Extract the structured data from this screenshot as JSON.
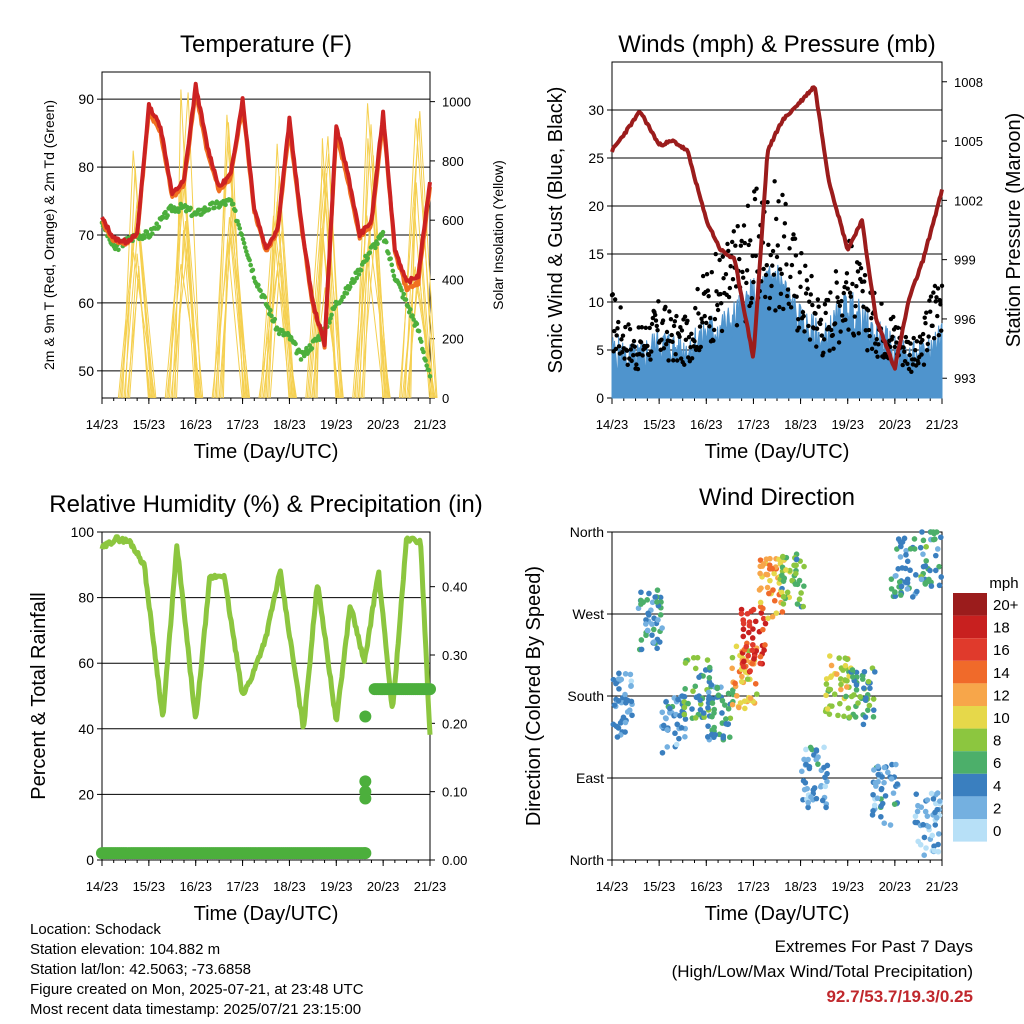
{
  "chart_data": [
    {
      "type": "line",
      "title": "Temperature (F)",
      "xlabel": "Time (Day/UTC)",
      "ylabel": "2m & 9m T (Red, Orange) & 2m Td (Green)",
      "ylabel_right": "Solar Insolation (Yellow)",
      "x_ticks": [
        "14/23",
        "15/23",
        "16/23",
        "17/23",
        "18/23",
        "19/23",
        "20/23",
        "21/23"
      ],
      "y_ticks": [
        50,
        60,
        70,
        80,
        90
      ],
      "y_right_ticks": [
        0,
        200,
        400,
        600,
        800,
        1000
      ],
      "ylim": [
        46,
        94
      ],
      "ylim_right": [
        0,
        1100
      ],
      "grid": true,
      "series": [
        {
          "color": "#cc2222",
          "x": [
            0,
            0.25,
            0.5,
            0.75,
            1,
            1.25,
            1.5,
            1.75,
            2,
            2.25,
            2.5,
            2.75,
            3,
            3.25,
            3.5,
            3.75,
            4,
            4.25,
            4.5,
            4.75,
            5,
            5.25,
            5.5,
            5.75,
            6,
            6.25,
            6.5,
            6.75,
            7
          ],
          "values": [
            72.5,
            69.5,
            69,
            70,
            89,
            86,
            76,
            78,
            92,
            83,
            77,
            79,
            90,
            74,
            68,
            71,
            87,
            72,
            60,
            54,
            86,
            79,
            70,
            72,
            88,
            68,
            63,
            64,
            78
          ]
        },
        {
          "color": "#f07020",
          "x": [
            0,
            0.25,
            0.5,
            0.75,
            1,
            1.25,
            1.5,
            1.75,
            2,
            2.25,
            2.5,
            2.75,
            3,
            3.25,
            3.5,
            3.75,
            4,
            4.25,
            4.5,
            4.75,
            5,
            5.25,
            5.5,
            5.75,
            6,
            6.25,
            6.5,
            6.75,
            7
          ],
          "values": [
            72,
            69,
            68.8,
            70,
            88,
            85,
            75.5,
            77.5,
            91,
            82,
            76.5,
            78.5,
            89,
            73.5,
            67.5,
            70.5,
            86,
            71.5,
            59.5,
            53.7,
            85,
            78,
            69.5,
            71.5,
            87,
            67.5,
            62,
            63,
            77
          ]
        },
        {
          "color": "#4caf3c",
          "x": [
            0,
            0.25,
            0.5,
            0.75,
            1,
            1.25,
            1.5,
            1.75,
            2,
            2.25,
            2.5,
            2.75,
            3,
            3.25,
            3.5,
            3.75,
            4,
            4.25,
            4.5,
            4.75,
            5,
            5.25,
            5.5,
            5.75,
            6,
            6.25,
            6.5,
            6.75,
            7
          ],
          "values": [
            72,
            68,
            69,
            70,
            70,
            72,
            74,
            74,
            73,
            74,
            74.5,
            75,
            70,
            64,
            60,
            56,
            55,
            52,
            54,
            56,
            60,
            62,
            65,
            68,
            70,
            64,
            60,
            56,
            49
          ]
        },
        {
          "color": "#f5d050",
          "x": [
            0.35,
            0.75,
            1.35,
            1.75,
            2.35,
            2.75,
            3.35,
            3.75,
            4.35,
            4.75,
            5.35,
            5.75,
            6.35,
            6.75
          ],
          "values": [
            0,
            900,
            0,
            1050,
            0,
            1000,
            0,
            950,
            0,
            900,
            0,
            1000,
            0,
            1050
          ]
        }
      ]
    },
    {
      "type": "line",
      "title": "Winds (mph) & Pressure (mb)",
      "xlabel": "Time (Day/UTC)",
      "ylabel": "Sonic Wind & Gust (Blue, Black)",
      "ylabel_right": "Station Pressure (Maroon)",
      "x_ticks": [
        "14/23",
        "15/23",
        "16/23",
        "17/23",
        "18/23",
        "19/23",
        "20/23",
        "21/23"
      ],
      "y_ticks": [
        0,
        5,
        10,
        15,
        20,
        25,
        30
      ],
      "y_right_ticks": [
        993,
        996,
        999,
        1002,
        1005,
        1008
      ],
      "ylim": [
        0,
        35
      ],
      "ylim_right": [
        992,
        1009
      ],
      "grid": true,
      "series": [
        {
          "color": "#4f94cd",
          "x": [
            0,
            0.5,
            1,
            1.5,
            2,
            2.5,
            3,
            3.5,
            4,
            4.5,
            5,
            5.5,
            6,
            6.5,
            7
          ],
          "values": [
            4,
            3,
            5,
            4,
            6,
            7,
            10,
            12,
            7,
            5,
            9,
            6,
            4,
            3,
            6
          ]
        },
        {
          "color": "#000000",
          "x": [
            0,
            0.5,
            1,
            1.5,
            2,
            2.5,
            3,
            3.5,
            4,
            4.5,
            5,
            5.5,
            6,
            6.5,
            7
          ],
          "values": [
            10,
            6,
            9,
            7,
            12,
            15,
            19,
            20,
            14,
            9,
            15,
            10,
            8,
            5,
            15
          ]
        },
        {
          "color": "#9b1c1c",
          "x": [
            0,
            0.3,
            0.6,
            1,
            1.3,
            1.6,
            2,
            2.3,
            2.6,
            3,
            3.3,
            3.6,
            4,
            4.3,
            4.6,
            5,
            5.3,
            5.6,
            6,
            6.3,
            6.6,
            7
          ],
          "values": [
            1004.5,
            1005.5,
            1006.5,
            1004.8,
            1005,
            1004.5,
            1001,
            999.5,
            999,
            994,
            1004.5,
            1006,
            1007,
            1007.8,
            1003,
            999.5,
            1001,
            996,
            993.5,
            997,
            999,
            1002.5
          ]
        }
      ]
    },
    {
      "type": "line",
      "title": "Relative Humidity (%) & Precipitation (in)",
      "xlabel": "Time (Day/UTC)",
      "ylabel": "Percent & Total Rainfall",
      "x_ticks": [
        "14/23",
        "15/23",
        "16/23",
        "17/23",
        "18/23",
        "19/23",
        "20/23",
        "21/23"
      ],
      "y_ticks": [
        0,
        20,
        40,
        60,
        80,
        100
      ],
      "y_right_ticks": [
        "0.00",
        "0.10",
        "0.20",
        "0.30",
        "0.40"
      ],
      "ylim": [
        0,
        100
      ],
      "ylim_right": [
        0,
        0.48
      ],
      "grid": true,
      "series": [
        {
          "color": "#8cc63f",
          "x": [
            0,
            0.3,
            0.6,
            0.9,
            1.3,
            1.6,
            2,
            2.3,
            2.6,
            3,
            3.2,
            3.5,
            3.8,
            4.3,
            4.6,
            5,
            5.3,
            5.6,
            5.9,
            6.2,
            6.5,
            6.8,
            7
          ],
          "values": [
            95,
            98,
            97,
            90,
            43,
            96,
            42,
            86,
            87,
            50,
            56,
            68,
            88,
            40,
            85,
            42,
            78,
            60,
            88,
            45,
            98,
            97,
            38
          ]
        },
        {
          "color": "#4caf3c",
          "x": [
            0,
            1,
            2,
            3,
            4,
            5,
            5.6,
            5.65,
            5.7,
            5.75,
            5.8,
            6,
            6.5,
            7
          ],
          "values": [
            0.01,
            0.01,
            0.01,
            0.01,
            0.01,
            0.01,
            0.01,
            0.09,
            0.12,
            0.21,
            0.25,
            0.25,
            0.25,
            0.25
          ]
        }
      ]
    },
    {
      "type": "scatter",
      "title": "Wind Direction",
      "xlabel": "Time (Day/UTC)",
      "ylabel": "Direction (Colored By Speed)",
      "x_ticks": [
        "14/23",
        "15/23",
        "16/23",
        "17/23",
        "18/23",
        "19/23",
        "20/23",
        "21/23"
      ],
      "y_ticks": [
        "North",
        "East",
        "South",
        "West",
        "North"
      ],
      "ylim": [
        0,
        360
      ],
      "grid": true,
      "legend_title": "mph",
      "legend_labels": [
        "20+",
        "18",
        "16",
        "14",
        "12",
        "10",
        "8",
        "6",
        "4",
        "2",
        "0"
      ],
      "legend_colors": [
        "#9b1c1c",
        "#c8201f",
        "#e03a2c",
        "#f06a2a",
        "#f7a64a",
        "#e6d84a",
        "#8cc63f",
        "#4caf6a",
        "#3a7fbf",
        "#74b0e0",
        "#b7e0f7"
      ],
      "clusters": [
        {
          "x": 0.2,
          "dir": 170,
          "speed": 3
        },
        {
          "x": 0.8,
          "dir": 265,
          "speed": 4
        },
        {
          "x": 1.3,
          "dir": 150,
          "speed": 3
        },
        {
          "x": 1.8,
          "dir": 190,
          "speed": 6
        },
        {
          "x": 2.3,
          "dir": 160,
          "speed": 5
        },
        {
          "x": 2.8,
          "dir": 200,
          "speed": 11
        },
        {
          "x": 3.0,
          "dir": 240,
          "speed": 16
        },
        {
          "x": 3.4,
          "dir": 300,
          "speed": 12
        },
        {
          "x": 3.8,
          "dir": 310,
          "speed": 7
        },
        {
          "x": 4.3,
          "dir": 90,
          "speed": 3
        },
        {
          "x": 4.8,
          "dir": 190,
          "speed": 9
        },
        {
          "x": 5.3,
          "dir": 180,
          "speed": 6
        },
        {
          "x": 5.8,
          "dir": 70,
          "speed": 3
        },
        {
          "x": 6.2,
          "dir": 320,
          "speed": 4
        },
        {
          "x": 6.8,
          "dir": 330,
          "speed": 5
        },
        {
          "x": 6.7,
          "dir": 40,
          "speed": 2
        }
      ]
    }
  ],
  "info": {
    "location": "Location: Schodack",
    "elevation": "Station elevation: 104.882 m",
    "latlon": "Station lat/lon: 42.5063; -73.6858",
    "created": "Figure created on Mon, 2025-07-21, at 23:48 UTC",
    "recent": "Most recent data timestamp: 2025/07/21 23:15:00"
  },
  "extremes": {
    "line1": "Extremes For Past 7 Days",
    "line2": "(High/Low/Max Wind/Total Precipitation)",
    "values": "92.7/53.7/19.3/0.25"
  }
}
